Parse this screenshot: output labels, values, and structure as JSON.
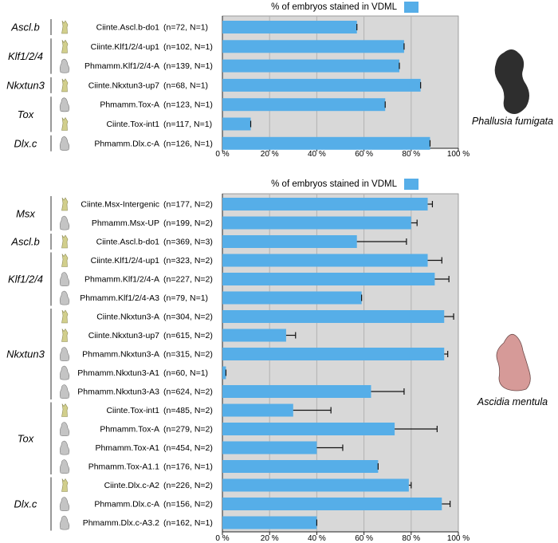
{
  "colors": {
    "bar": "#56aee8",
    "bar_stroke": "#3d96d3",
    "panel_bg": "#d8d8d8",
    "grid": "#b3b3b3",
    "ciona_embryo": "#d2cf8c",
    "phallusia_embryo": "#c4c4c4",
    "phallusia_silhouette": "#2e2e2e",
    "ascidia_silhouette": "#d69a98"
  },
  "chart_data": [
    {
      "type": "bar",
      "orientation": "horizontal",
      "legend_label": "% of embryos stained in VDML",
      "legend_position": "top",
      "species_label": "Phallusia fumigata",
      "species_icon": "phallusia-silhouette-icon",
      "xlim": [
        0,
        100
      ],
      "xticks": [
        "0 %",
        "20 %",
        "40 %",
        "60 %",
        "80 %",
        "100 %"
      ],
      "grid": true,
      "groups": [
        {
          "gene": "Ascl.b",
          "start": 0,
          "count": 1
        },
        {
          "gene": "Klf1/2/4",
          "start": 1,
          "count": 2
        },
        {
          "gene": "Nkxtun3",
          "start": 3,
          "count": 1
        },
        {
          "gene": "Tox",
          "start": 4,
          "count": 2
        },
        {
          "gene": "Dlx.c",
          "start": 6,
          "count": 1
        }
      ],
      "rows": [
        {
          "construct": "Ciinte.Ascl.b-do1",
          "n": "(n=72, N=1)",
          "value": 57,
          "embryo": "ciona"
        },
        {
          "construct": "Ciinte.Klf1/2/4-up1",
          "n": "(n=102, N=1)",
          "value": 77,
          "embryo": "ciona"
        },
        {
          "construct": "Phmamm.Klf1/2/4-A",
          "n": "(n=139, N=1)",
          "value": 75,
          "embryo": "phallusia"
        },
        {
          "construct": "Ciinte.Nkxtun3-up7",
          "n": "(n=68, N=1)",
          "value": 84,
          "embryo": "ciona"
        },
        {
          "construct": "Phmamm.Tox-A",
          "n": "(n=123, N=1)",
          "value": 69,
          "embryo": "phallusia"
        },
        {
          "construct": "Ciinte.Tox-int1",
          "n": "(n=117, N=1)",
          "value": 12,
          "embryo": "ciona"
        },
        {
          "construct": "Phmamm.Dlx.c-A",
          "n": "(n=126, N=1)",
          "value": 88,
          "embryo": "phallusia"
        }
      ]
    },
    {
      "type": "bar",
      "orientation": "horizontal",
      "legend_label": "% of embryos stained in VDML",
      "legend_position": "top",
      "species_label": "Ascidia mentula",
      "species_icon": "ascidia-silhouette-icon",
      "xlim": [
        0,
        100
      ],
      "xticks": [
        "0 %",
        "20 %",
        "40 %",
        "60 %",
        "80 %",
        "100 %"
      ],
      "grid": true,
      "groups": [
        {
          "gene": "Msx",
          "start": 0,
          "count": 2
        },
        {
          "gene": "Ascl.b",
          "start": 2,
          "count": 1
        },
        {
          "gene": "Klf1/2/4",
          "start": 3,
          "count": 3
        },
        {
          "gene": "Nkxtun3",
          "start": 6,
          "count": 5
        },
        {
          "gene": "Tox",
          "start": 11,
          "count": 4
        },
        {
          "gene": "Dlx.c",
          "start": 15,
          "count": 3
        }
      ],
      "rows": [
        {
          "construct": "Ciinte.Msx-Intergenic",
          "n": "(n=177, N=2)",
          "value": 87,
          "error": 2,
          "embryo": "ciona"
        },
        {
          "construct": "Phmamm.Msx-UP",
          "n": "(n=199, N=2)",
          "value": 80,
          "error": 2.5,
          "embryo": "phallusia"
        },
        {
          "construct": "Ciinte.Ascl.b-do1",
          "n": "(n=369, N=3)",
          "value": 57,
          "error": 21,
          "embryo": "ciona"
        },
        {
          "construct": "Ciinte.Klf1/2/4-up1",
          "n": "(n=323, N=2)",
          "value": 87,
          "error": 6,
          "embryo": "ciona"
        },
        {
          "construct": "Phmamm.Klf1/2/4-A",
          "n": "(n=227, N=2)",
          "value": 90,
          "error": 6,
          "embryo": "phallusia"
        },
        {
          "construct": "Phmamm.Klf1/2/4-A3",
          "n": "(n=79, N=1)",
          "value": 59,
          "embryo": "phallusia"
        },
        {
          "construct": "Ciinte.Nkxtun3-A",
          "n": "(n=304, N=2)",
          "value": 94,
          "error": 4,
          "embryo": "ciona"
        },
        {
          "construct": "Ciinte.Nkxtun3-up7",
          "n": "(n=615, N=2)",
          "value": 27,
          "error": 4,
          "embryo": "ciona"
        },
        {
          "construct": "Phmamm.Nkxtun3-A",
          "n": "(n=315, N=2)",
          "value": 94,
          "error": 1.5,
          "embryo": "phallusia"
        },
        {
          "construct": "Phmamm.Nkxtun3-A1",
          "n": "(n=60, N=1)",
          "value": 1.5,
          "embryo": "phallusia"
        },
        {
          "construct": "Phmamm.Nkxtun3-A3",
          "n": "(n=624, N=2)",
          "value": 63,
          "error": 14,
          "embryo": "phallusia"
        },
        {
          "construct": "Ciinte.Tox-int1",
          "n": "(n=485, N=2)",
          "value": 30,
          "error": 16,
          "embryo": "ciona"
        },
        {
          "construct": "Phmamm.Tox-A",
          "n": "(n=279, N=2)",
          "value": 73,
          "error": 18,
          "embryo": "phallusia"
        },
        {
          "construct": "Phmamm.Tox-A1",
          "n": "(n=454, N=2)",
          "value": 40,
          "error": 11,
          "embryo": "phallusia"
        },
        {
          "construct": "Phmamm.Tox-A1.1",
          "n": "(n=176, N=1)",
          "value": 66,
          "embryo": "phallusia"
        },
        {
          "construct": "Ciinte.Dlx.c-A2",
          "n": "(n=226, N=2)",
          "value": 79,
          "error": 1,
          "embryo": "ciona"
        },
        {
          "construct": "Phmamm.Dlx.c-A",
          "n": "(n=156, N=2)",
          "value": 93,
          "error": 3.5,
          "embryo": "phallusia"
        },
        {
          "construct": "Phmamm.Dlx.c-A3.2",
          "n": "(n=162, N=1)",
          "value": 40,
          "embryo": "phallusia"
        }
      ]
    }
  ]
}
